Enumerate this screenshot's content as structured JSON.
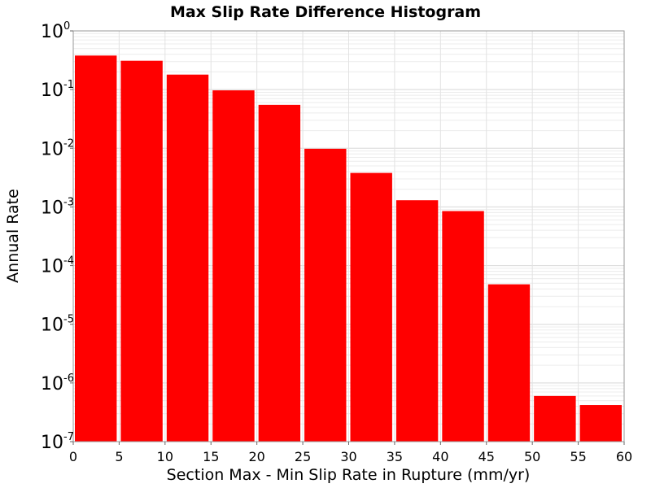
{
  "chart_data": {
    "type": "bar",
    "title": "Max Slip Rate Difference Histogram",
    "xlabel": "Section Max - Min Slip Rate in Rupture (mm/yr)",
    "ylabel": "Annual Rate",
    "xlim": [
      0,
      60
    ],
    "ylim": [
      1e-07,
      1
    ],
    "yscale": "log",
    "grid": true,
    "bar_color": "#ff0000",
    "bins": [
      {
        "x0": 0,
        "x1": 5,
        "value": 0.38
      },
      {
        "x0": 5,
        "x1": 10,
        "value": 0.31
      },
      {
        "x0": 10,
        "x1": 15,
        "value": 0.18
      },
      {
        "x0": 15,
        "x1": 20,
        "value": 0.097
      },
      {
        "x0": 20,
        "x1": 25,
        "value": 0.055
      },
      {
        "x0": 25,
        "x1": 30,
        "value": 0.0098
      },
      {
        "x0": 30,
        "x1": 35,
        "value": 0.0038
      },
      {
        "x0": 35,
        "x1": 40,
        "value": 0.0013
      },
      {
        "x0": 40,
        "x1": 45,
        "value": 0.00085
      },
      {
        "x0": 45,
        "x1": 50,
        "value": 4.8e-05
      },
      {
        "x0": 50,
        "x1": 55,
        "value": 6e-07
      },
      {
        "x0": 55,
        "x1": 60,
        "value": 4.2e-07
      }
    ],
    "x_ticks": [
      "0",
      "5",
      "10",
      "15",
      "20",
      "25",
      "30",
      "35",
      "40",
      "45",
      "50",
      "55",
      "60"
    ],
    "y_ticks": [
      {
        "base": "10",
        "exp": "0"
      },
      {
        "base": "10",
        "exp": "-1"
      },
      {
        "base": "10",
        "exp": "-2"
      },
      {
        "base": "10",
        "exp": "-3"
      },
      {
        "base": "10",
        "exp": "-4"
      },
      {
        "base": "10",
        "exp": "-5"
      },
      {
        "base": "10",
        "exp": "-6"
      },
      {
        "base": "10",
        "exp": "-7"
      }
    ]
  }
}
